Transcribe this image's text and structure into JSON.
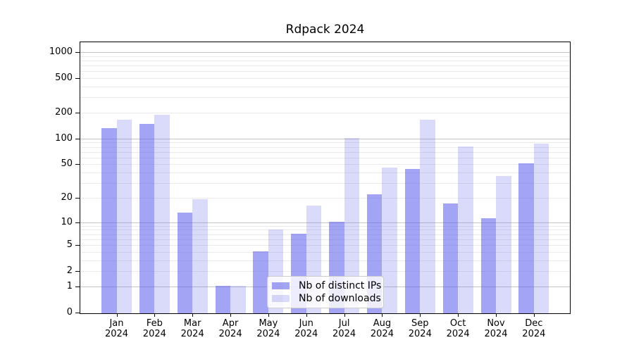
{
  "chart_data": {
    "type": "bar",
    "title": "Rdpack 2024",
    "year": "2024",
    "categories": [
      "Jan",
      "Feb",
      "Mar",
      "Apr",
      "May",
      "Jun",
      "Jul",
      "Aug",
      "Sep",
      "Oct",
      "Nov",
      "Dec"
    ],
    "series": [
      {
        "name": "Nb of distinct IPs",
        "color": "rgba(99,99,236,0.58)",
        "values": [
          132,
          147,
          13,
          1,
          4,
          7,
          10,
          22,
          44,
          17,
          11,
          51
        ]
      },
      {
        "name": "Nb of downloads",
        "color": "rgba(99,99,236,0.24)",
        "values": [
          164,
          189,
          19,
          1,
          8,
          16,
          100,
          45,
          165,
          80,
          36,
          87
        ]
      }
    ],
    "yscale": "log1p",
    "ylim": [
      0,
      1300
    ],
    "yticks": [
      0,
      1,
      2,
      5,
      10,
      20,
      50,
      100,
      200,
      500,
      1000
    ],
    "major_gridlines": [
      1,
      10,
      100,
      1000
    ],
    "minor_gridline_bases": [
      1,
      10,
      100
    ],
    "grid": true,
    "legend_position": "lower center",
    "xlabel": "",
    "ylabel": ""
  },
  "colors": {
    "bar_base": "#6363ec",
    "major_grid": "#c4c4c4",
    "minor_grid": "#eaeaea",
    "spine": "#000000",
    "legend_border": "#cccccc"
  }
}
